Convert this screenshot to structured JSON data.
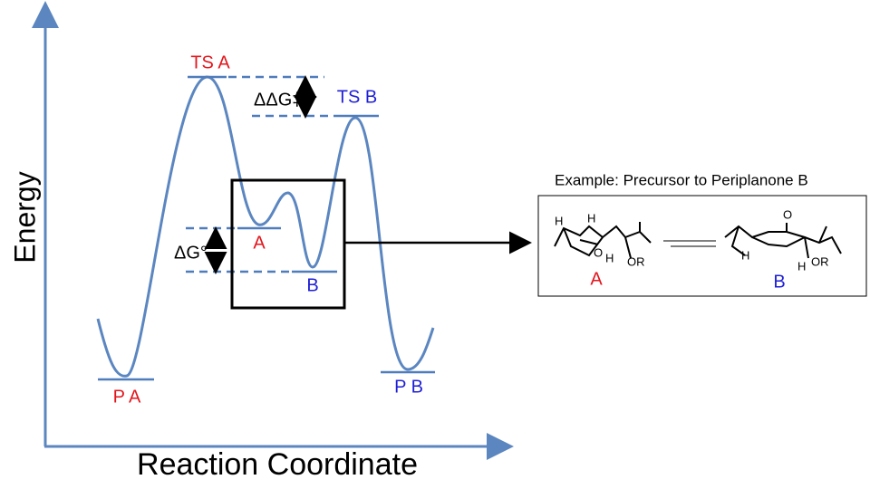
{
  "axes": {
    "y_label": "Energy",
    "x_label": "Reaction Coordinate"
  },
  "states": {
    "ts_a": "TS A",
    "ts_b": "TS B",
    "int_a": "A",
    "int_b": "B",
    "p_a": "P A",
    "p_b": "P B"
  },
  "energy_gaps": {
    "ddg": "ΔΔG‡",
    "dg": "ΔG°"
  },
  "example": {
    "title": "Example: Precursor to Periplanone B",
    "conformer_a": {
      "label": "A",
      "atoms": [
        "H",
        "H",
        "O",
        "H",
        "OR"
      ]
    },
    "conformer_b": {
      "label": "B",
      "atoms": [
        "O",
        "H",
        "H",
        "OR"
      ]
    }
  }
}
